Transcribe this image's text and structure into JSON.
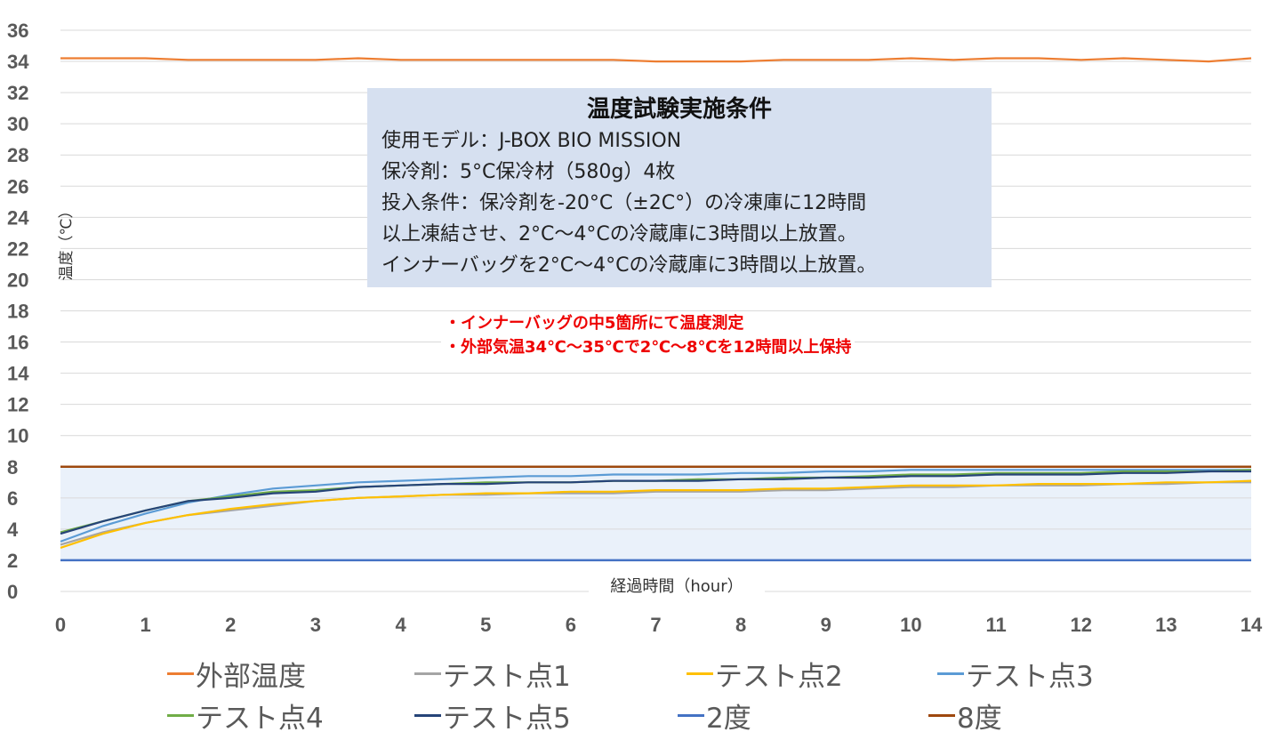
{
  "chart_data": {
    "type": "line",
    "ylabel": "温度（℃）",
    "xlabel": "経過時間（hour）",
    "ylim": [
      0,
      36
    ],
    "xlim": [
      0,
      14
    ],
    "yticks": [
      "0",
      "2",
      "4",
      "6",
      "8",
      "10",
      "12",
      "14",
      "16",
      "18",
      "20",
      "22",
      "24",
      "26",
      "28",
      "30",
      "32",
      "34",
      "36"
    ],
    "xticks": [
      "0",
      "1",
      "2",
      "3",
      "4",
      "5",
      "6",
      "7",
      "8",
      "9",
      "10",
      "11",
      "12",
      "13",
      "14"
    ],
    "grid": true,
    "legend_position": "bottom",
    "shaded_band": {
      "from": 2,
      "to": 8,
      "color": "#eaf1fa"
    },
    "x": [
      0,
      0.5,
      1,
      1.5,
      2,
      2.5,
      3,
      3.5,
      4,
      4.5,
      5,
      5.5,
      6,
      6.5,
      7,
      7.5,
      8,
      8.5,
      9,
      9.5,
      10,
      10.5,
      11,
      11.5,
      12,
      12.5,
      13,
      13.5,
      14
    ],
    "series": [
      {
        "name": "外部温度",
        "color": "#ed7d31",
        "values": [
          34.2,
          34.2,
          34.2,
          34.1,
          34.1,
          34.1,
          34.1,
          34.2,
          34.1,
          34.1,
          34.1,
          34.1,
          34.1,
          34.1,
          34.0,
          34.0,
          34.0,
          34.1,
          34.1,
          34.1,
          34.2,
          34.1,
          34.2,
          34.2,
          34.1,
          34.2,
          34.1,
          34.0,
          34.2
        ]
      },
      {
        "name": "テスト点1",
        "color": "#a5a5a5",
        "values": [
          3.0,
          3.8,
          4.4,
          4.9,
          5.2,
          5.5,
          5.8,
          6.0,
          6.1,
          6.2,
          6.2,
          6.3,
          6.3,
          6.3,
          6.4,
          6.4,
          6.4,
          6.5,
          6.5,
          6.6,
          6.7,
          6.7,
          6.8,
          6.8,
          6.8,
          6.9,
          6.9,
          7.0,
          7.0
        ]
      },
      {
        "name": "テスト点2",
        "color": "#ffc000",
        "values": [
          2.8,
          3.7,
          4.4,
          4.9,
          5.3,
          5.6,
          5.8,
          6.0,
          6.1,
          6.2,
          6.3,
          6.3,
          6.4,
          6.4,
          6.5,
          6.5,
          6.5,
          6.6,
          6.6,
          6.7,
          6.8,
          6.8,
          6.8,
          6.9,
          6.9,
          6.9,
          7.0,
          7.0,
          7.1
        ]
      },
      {
        "name": "テスト点3",
        "color": "#5b9bd5",
        "values": [
          3.2,
          4.2,
          5.0,
          5.7,
          6.2,
          6.6,
          6.8,
          7.0,
          7.1,
          7.2,
          7.3,
          7.4,
          7.4,
          7.5,
          7.5,
          7.5,
          7.6,
          7.6,
          7.7,
          7.7,
          7.8,
          7.8,
          7.8,
          7.8,
          7.8,
          7.8,
          7.8,
          7.8,
          7.8
        ]
      },
      {
        "name": "テスト点4",
        "color": "#70ad47",
        "values": [
          3.8,
          4.5,
          5.2,
          5.8,
          6.1,
          6.4,
          6.5,
          6.7,
          6.8,
          6.9,
          7.0,
          7.0,
          7.0,
          7.1,
          7.1,
          7.2,
          7.2,
          7.3,
          7.3,
          7.4,
          7.5,
          7.5,
          7.6,
          7.6,
          7.6,
          7.7,
          7.7,
          7.7,
          7.8
        ]
      },
      {
        "name": "テスト点5",
        "color": "#264478",
        "values": [
          3.7,
          4.5,
          5.2,
          5.8,
          6.0,
          6.3,
          6.4,
          6.7,
          6.8,
          6.9,
          6.9,
          7.0,
          7.0,
          7.1,
          7.1,
          7.1,
          7.2,
          7.2,
          7.3,
          7.3,
          7.4,
          7.4,
          7.5,
          7.5,
          7.5,
          7.6,
          7.6,
          7.7,
          7.7
        ]
      },
      {
        "name": "2度",
        "color": "#4472c4",
        "values": [
          2,
          2,
          2,
          2,
          2,
          2,
          2,
          2,
          2,
          2,
          2,
          2,
          2,
          2,
          2,
          2,
          2,
          2,
          2,
          2,
          2,
          2,
          2,
          2,
          2,
          2,
          2,
          2,
          2
        ]
      },
      {
        "name": "8度",
        "color": "#9e480e",
        "values": [
          8,
          8,
          8,
          8,
          8,
          8,
          8,
          8,
          8,
          8,
          8,
          8,
          8,
          8,
          8,
          8,
          8,
          8,
          8,
          8,
          8,
          8,
          8,
          8,
          8,
          8,
          8,
          8,
          8
        ]
      }
    ]
  },
  "info_box": {
    "title": "温度試験実施条件",
    "lines": [
      "使用モデル：J-BOX BIO MISSION",
      "保冷剤：5°C保冷材（580g）4枚",
      "投入条件：保冷剤を-20°C（±2C°）の冷凍庫に12時間",
      "以上凍結させ、2°C～4°Cの冷蔵庫に3時間以上放置。",
      "インナーバッグを2°C～4°Cの冷蔵庫に3時間以上放置。"
    ]
  },
  "notes": [
    "・インナーバッグの中5箇所にて温度測定",
    "・外部気温34℃～35℃で2℃～8℃を12時間以上保持"
  ]
}
